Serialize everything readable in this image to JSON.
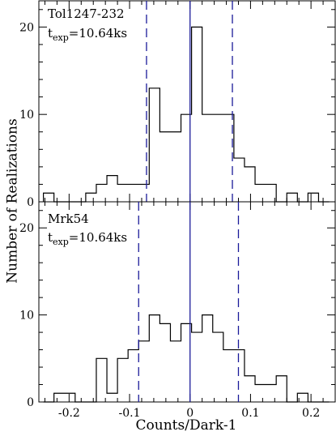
{
  "figure": {
    "ylabel": "Number of Realizations",
    "xlabel": "Counts/Dark-1"
  },
  "chart_data": [
    {
      "type": "histogram",
      "object": "Tol1247-232",
      "texp_prefix": "t",
      "texp_sub": "exp",
      "texp_value": "=10.64ks",
      "xlim": [
        -0.25,
        0.24
      ],
      "ylim": [
        0,
        23
      ],
      "xticks": [
        -0.2,
        -0.1,
        0,
        0.1,
        0.2
      ],
      "yticks": [
        0,
        10,
        20
      ],
      "ytick_labels": [
        "0",
        "10",
        "20"
      ],
      "bin_width": 0.0175,
      "bin_starts": [
        -0.2425,
        -0.225,
        -0.2075,
        -0.19,
        -0.1725,
        -0.155,
        -0.1375,
        -0.12,
        -0.1025,
        -0.085,
        -0.0675,
        -0.05,
        -0.0325,
        -0.015,
        0.0025,
        0.02,
        0.0375,
        0.055,
        0.0725,
        0.09,
        0.1075,
        0.125,
        0.1425,
        0.16,
        0.1775,
        0.195,
        0.2125
      ],
      "counts": [
        1,
        0,
        0,
        0,
        1,
        2,
        3,
        2,
        2,
        2,
        13,
        8,
        8,
        10,
        20,
        10,
        10,
        10,
        5,
        4,
        2,
        2,
        0,
        1,
        0,
        1,
        0
      ],
      "center_line": 0,
      "dashed_lines": [
        -0.072,
        0.07
      ],
      "line_color": "#1a1a99",
      "hist_color": "#000000"
    },
    {
      "type": "histogram",
      "object": "Mrk54",
      "texp_prefix": "t",
      "texp_sub": "exp",
      "texp_value": "=10.64ks",
      "xlim": [
        -0.25,
        0.24
      ],
      "ylim": [
        0,
        23
      ],
      "xticks": [
        -0.2,
        -0.1,
        0,
        0.1,
        0.2
      ],
      "xtick_labels": [
        "-0.2",
        "-0.1",
        "0",
        "0.1",
        "0.2"
      ],
      "yticks": [
        0,
        10,
        20
      ],
      "ytick_labels": [
        "0",
        "10",
        "20"
      ],
      "bin_width": 0.0175,
      "bin_starts": [
        -0.2425,
        -0.225,
        -0.2075,
        -0.19,
        -0.1725,
        -0.155,
        -0.1375,
        -0.12,
        -0.1025,
        -0.085,
        -0.0675,
        -0.05,
        -0.0325,
        -0.015,
        0.0025,
        0.02,
        0.0375,
        0.055,
        0.0725,
        0.09,
        0.1075,
        0.125,
        0.1425,
        0.16,
        0.1775,
        0.195,
        0.2125
      ],
      "counts": [
        0,
        1,
        1,
        0,
        0,
        5,
        1,
        5,
        6,
        7,
        10,
        9,
        7,
        9,
        8,
        10,
        8,
        6,
        6,
        3,
        2,
        2,
        3,
        0,
        1,
        0,
        0
      ],
      "center_line": 0,
      "dashed_lines": [
        -0.085,
        0.08
      ],
      "line_color": "#1a1a99",
      "hist_color": "#000000"
    }
  ]
}
